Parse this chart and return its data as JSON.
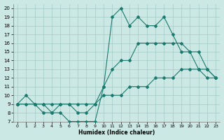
{
  "xlabel": "Humidex (Indice chaleur)",
  "bg_color": "#cce8e4",
  "grid_color": "#aacfcb",
  "line_color": "#1a7a6e",
  "xlim": [
    -0.5,
    23.5
  ],
  "ylim": [
    7,
    20.5
  ],
  "xticks": [
    0,
    1,
    2,
    3,
    4,
    5,
    6,
    7,
    8,
    9,
    10,
    11,
    12,
    13,
    14,
    15,
    16,
    17,
    18,
    19,
    20,
    21,
    22,
    23
  ],
  "yticks": [
    7,
    8,
    9,
    10,
    11,
    12,
    13,
    14,
    15,
    16,
    17,
    18,
    19,
    20
  ],
  "line1_x": [
    0,
    1,
    2,
    3,
    4,
    5,
    6,
    7,
    8,
    9,
    10,
    11,
    12,
    13,
    14,
    15,
    16,
    17,
    18,
    19,
    20,
    21,
    22,
    23
  ],
  "line1_y": [
    9,
    10,
    9,
    8,
    8,
    8,
    7,
    7,
    7,
    7,
    11,
    19,
    20,
    18,
    19,
    18,
    18,
    19,
    17,
    15,
    15,
    13,
    12,
    12
  ],
  "line2_x": [
    0,
    2,
    3,
    4,
    5,
    6,
    7,
    8,
    9,
    10,
    11,
    12,
    13,
    14,
    15,
    16,
    17,
    18,
    19,
    20,
    21,
    22,
    23
  ],
  "line2_y": [
    9,
    9,
    9,
    8,
    9,
    9,
    8,
    8,
    9,
    11,
    13,
    14,
    14,
    16,
    16,
    16,
    16,
    16,
    16,
    15,
    15,
    13,
    12
  ],
  "line3_x": [
    0,
    1,
    2,
    3,
    4,
    5,
    6,
    7,
    8,
    9,
    10,
    11,
    12,
    13,
    14,
    15,
    16,
    17,
    18,
    19,
    20,
    21,
    22,
    23
  ],
  "line3_y": [
    9,
    9,
    9,
    9,
    9,
    9,
    9,
    9,
    9,
    9,
    10,
    10,
    10,
    11,
    11,
    11,
    12,
    12,
    12,
    13,
    13,
    13,
    13,
    12
  ]
}
